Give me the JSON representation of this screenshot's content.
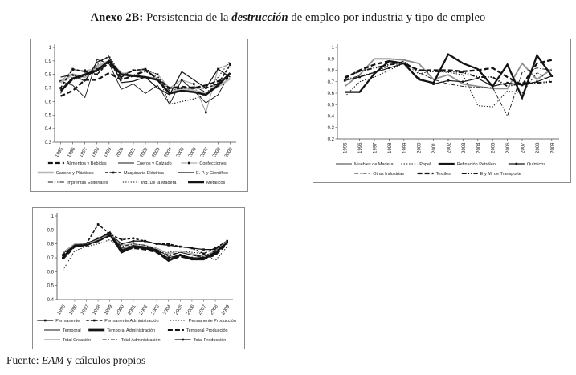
{
  "page": {
    "title": {
      "prefix": "Anexo 2B:",
      "mid": " Persistencia de la ",
      "emph": "destrucción",
      "suffix": " de empleo por industria y tipo de empleo"
    },
    "fuente": {
      "label": "Fuente: ",
      "source": "EAM",
      "rest": " y cálculos propios"
    }
  },
  "chart_data": [
    {
      "type": "line",
      "panel": "top-left",
      "title": "",
      "xlabel": "",
      "ylabel": "",
      "grid": false,
      "legend_position": "bottom",
      "ylim": [
        0.3,
        1
      ],
      "yticks": [
        1,
        0.9,
        0.8,
        0.7,
        0.6,
        0.5,
        0.4,
        0.3
      ],
      "ytick_labels": [
        "1",
        "0.9",
        "0.8",
        "0.7",
        "0.6",
        "0.5",
        "0.4",
        "0.3"
      ],
      "x_label_rotation": -58,
      "categories": [
        "1995",
        "1996",
        "1997",
        "1998",
        "1999",
        "2000",
        "2001",
        "2002",
        "2003",
        "2004",
        "2005",
        "2006",
        "2007",
        "2008",
        "2009"
      ],
      "legend_rows": [
        [
          0,
          1,
          2
        ],
        [
          3,
          4,
          5
        ],
        [
          6,
          7,
          8
        ]
      ],
      "series": [
        {
          "name": "Alimentos y Bebidas",
          "style": {
            "color": "#141414",
            "width": 2.3,
            "dash": "longdash",
            "marker": ""
          },
          "values": [
            0.64,
            0.68,
            0.76,
            0.76,
            0.81,
            0.76,
            0.79,
            0.83,
            0.77,
            0.7,
            0.71,
            0.7,
            0.72,
            0.75,
            0.78
          ]
        },
        {
          "name": "Cueros y Calzado",
          "style": {
            "color": "#141414",
            "width": 0.9,
            "dash": "solid",
            "marker": ""
          },
          "values": [
            0.75,
            0.72,
            0.63,
            0.91,
            0.88,
            0.69,
            0.73,
            0.66,
            0.72,
            0.58,
            0.76,
            0.68,
            0.59,
            0.65,
            0.81
          ]
        },
        {
          "name": "Confecciones",
          "style": {
            "color": "#9b9b9b",
            "width": 1.0,
            "dash": "solid",
            "marker": "square",
            "marker_color": "#141414"
          },
          "values": [
            0.75,
            0.83,
            0.83,
            0.84,
            0.9,
            0.8,
            0.83,
            0.83,
            0.8,
            0.7,
            0.76,
            0.73,
            0.52,
            0.84,
            0.88
          ]
        },
        {
          "name": "Caucho y Plásticos",
          "style": {
            "color": "#b5b5b5",
            "width": 2.6,
            "dash": "solid",
            "marker": ""
          },
          "values": [
            0.74,
            0.8,
            0.78,
            0.86,
            0.9,
            0.81,
            0.79,
            0.78,
            0.77,
            0.66,
            0.7,
            0.68,
            0.66,
            0.71,
            0.77
          ]
        },
        {
          "name": "Maquinaria Eléctrica",
          "style": {
            "color": "#141414",
            "width": 1.6,
            "dash": "dashsq",
            "marker": "square",
            "marker_color": "#141414"
          },
          "values": [
            0.7,
            0.84,
            0.82,
            0.8,
            0.89,
            0.78,
            0.83,
            0.84,
            0.76,
            0.7,
            0.7,
            0.7,
            0.7,
            0.73,
            0.87
          ]
        },
        {
          "name": "E. P. y Científico",
          "style": {
            "color": "#141414",
            "width": 1.2,
            "dash": "solid",
            "marker": ""
          },
          "values": [
            0.78,
            0.8,
            0.75,
            0.89,
            0.93,
            0.74,
            0.75,
            0.78,
            0.7,
            0.65,
            0.82,
            0.76,
            0.7,
            0.84,
            0.78
          ]
        },
        {
          "name": "Imprentas Editoriales",
          "style": {
            "color": "#141414",
            "width": 1.0,
            "dash": "dashdotdot",
            "marker": ""
          },
          "values": [
            0.67,
            0.76,
            0.79,
            0.82,
            0.88,
            0.77,
            0.79,
            0.82,
            0.78,
            0.68,
            0.7,
            0.71,
            0.67,
            0.72,
            0.8
          ]
        },
        {
          "name": "Ind. De la Madera",
          "style": {
            "color": "#141414",
            "width": 1.1,
            "dash": "dot",
            "marker": ""
          },
          "values": [
            0.66,
            0.79,
            0.75,
            0.87,
            0.94,
            0.79,
            0.83,
            0.84,
            0.8,
            0.58,
            0.6,
            0.62,
            0.65,
            0.78,
            0.9
          ]
        },
        {
          "name": "Metálicos",
          "style": {
            "color": "#141414",
            "width": 2.6,
            "dash": "solid",
            "marker": ""
          },
          "values": [
            0.68,
            0.77,
            0.8,
            0.83,
            0.9,
            0.8,
            0.79,
            0.78,
            0.76,
            0.66,
            0.68,
            0.67,
            0.65,
            0.72,
            0.81
          ]
        }
      ]
    },
    {
      "type": "line",
      "panel": "top-right",
      "title": "",
      "xlabel": "",
      "ylabel": "",
      "grid": false,
      "legend_position": "bottom",
      "ylim": [
        0.2,
        1
      ],
      "yticks": [
        1,
        0.9,
        0.8,
        0.7,
        0.6,
        0.5,
        0.4,
        0.3,
        0.2
      ],
      "ytick_labels": [
        "1",
        "0.9",
        "0.8",
        "0.7",
        "0.6",
        "0.5",
        "0.4",
        "0.3",
        "0.2"
      ],
      "x_label_rotation": -90,
      "categories": [
        "1995",
        "1996",
        "1997",
        "1998",
        "1999",
        "2000",
        "2001",
        "2002",
        "2003",
        "2004",
        "2005",
        "2006",
        "2007",
        "2008",
        "2009"
      ],
      "legend_rows": [
        [
          0,
          1,
          2,
          3
        ],
        [
          4,
          5,
          6
        ]
      ],
      "series": [
        {
          "name": "Muebles de Madera",
          "style": {
            "color": "#8f8f8f",
            "width": 1.8,
            "dash": "solid",
            "marker": ""
          },
          "values": [
            0.66,
            0.76,
            0.9,
            0.9,
            0.89,
            0.86,
            0.72,
            0.76,
            0.68,
            0.66,
            0.64,
            0.64,
            0.86,
            0.72,
            0.81
          ]
        },
        {
          "name": "Papel",
          "style": {
            "color": "#141414",
            "width": 1.0,
            "dash": "dot",
            "marker": ""
          },
          "values": [
            0.57,
            0.7,
            0.74,
            0.8,
            0.86,
            0.77,
            0.79,
            0.78,
            0.76,
            0.49,
            0.48,
            0.62,
            0.6,
            0.78,
            0.7
          ]
        },
        {
          "name": "Refinación Petróleo",
          "style": {
            "color": "#141414",
            "width": 2.3,
            "dash": "solid",
            "marker": ""
          },
          "values": [
            0.61,
            0.61,
            0.77,
            0.88,
            0.86,
            0.72,
            0.69,
            0.94,
            0.86,
            0.81,
            0.66,
            0.85,
            0.56,
            0.93,
            0.75
          ]
        },
        {
          "name": "Químicos",
          "style": {
            "color": "#141414",
            "width": 1.2,
            "dash": "solid",
            "marker": "square",
            "marker_color": "#141414"
          },
          "values": [
            0.71,
            0.74,
            0.78,
            0.82,
            0.86,
            0.73,
            0.68,
            0.71,
            0.7,
            0.73,
            0.66,
            0.69,
            0.67,
            0.7,
            0.75
          ]
        },
        {
          "name": "Otras Industrias",
          "style": {
            "color": "#141414",
            "width": 0.9,
            "dash": "dashdot",
            "marker": ""
          },
          "values": [
            0.72,
            0.75,
            0.78,
            0.84,
            0.88,
            0.78,
            0.72,
            0.68,
            0.66,
            0.65,
            0.65,
            0.4,
            0.78,
            0.82,
            0.8
          ]
        },
        {
          "name": "Textiles",
          "style": {
            "color": "#141414",
            "width": 2.3,
            "dash": "longdash",
            "marker": ""
          },
          "values": [
            0.73,
            0.8,
            0.85,
            0.88,
            0.86,
            0.8,
            0.8,
            0.8,
            0.79,
            0.8,
            0.82,
            0.74,
            0.67,
            0.86,
            0.89
          ]
        },
        {
          "name": "E y M. de Transporte",
          "style": {
            "color": "#141414",
            "width": 1.9,
            "dash": "dashdotdot",
            "marker": ""
          },
          "values": [
            0.74,
            0.79,
            0.82,
            0.85,
            0.86,
            0.8,
            0.79,
            0.79,
            0.78,
            0.74,
            0.74,
            0.66,
            0.69,
            0.69,
            0.7
          ]
        }
      ]
    },
    {
      "type": "line",
      "panel": "bottom-left",
      "title": "",
      "xlabel": "",
      "ylabel": "",
      "grid": false,
      "legend_position": "bottom",
      "ylim": [
        0.4,
        1
      ],
      "yticks": [
        1,
        0.9,
        0.8,
        0.7,
        0.6,
        0.5,
        0.4
      ],
      "ytick_labels": [
        "1",
        "0.9",
        "0.8",
        "0.7",
        "0.6",
        "0.5",
        "0.4"
      ],
      "x_label_rotation": -58,
      "categories": [
        "1995",
        "1996",
        "1997",
        "1998",
        "1999",
        "2000",
        "2001",
        "2002",
        "2003",
        "2004",
        "2005",
        "2006",
        "2007",
        "2008",
        "2009"
      ],
      "legend_rows": [
        [
          0,
          1,
          2
        ],
        [
          3,
          4,
          5
        ],
        [
          6,
          7,
          8
        ]
      ],
      "series": [
        {
          "name": "Permanente",
          "style": {
            "color": "#141414",
            "width": 1.3,
            "dash": "solid",
            "marker": "square",
            "marker_color": "#141414"
          },
          "values": [
            0.7,
            0.79,
            0.8,
            0.84,
            0.87,
            0.8,
            0.82,
            0.82,
            0.8,
            0.79,
            0.78,
            0.77,
            0.76,
            0.76,
            0.82
          ]
        },
        {
          "name": "Permanente Administración",
          "style": {
            "color": "#141414",
            "width": 1.6,
            "dash": "dashsq",
            "marker": "square",
            "marker_color": "#141414"
          },
          "values": [
            0.72,
            0.79,
            0.8,
            0.94,
            0.87,
            0.83,
            0.84,
            0.82,
            0.8,
            0.8,
            0.78,
            0.77,
            0.73,
            0.77,
            0.82
          ]
        },
        {
          "name": "Permanente Producción",
          "style": {
            "color": "#141414",
            "width": 1.0,
            "dash": "dot",
            "marker": ""
          },
          "values": [
            0.61,
            0.75,
            0.78,
            0.8,
            0.83,
            0.76,
            0.77,
            0.77,
            0.74,
            0.74,
            0.75,
            0.74,
            0.73,
            0.68,
            0.78
          ]
        },
        {
          "name": "Temporal",
          "style": {
            "color": "#141414",
            "width": 0.9,
            "dash": "solid",
            "marker": ""
          },
          "values": [
            0.73,
            0.79,
            0.8,
            0.82,
            0.87,
            0.77,
            0.79,
            0.78,
            0.76,
            0.71,
            0.74,
            0.72,
            0.7,
            0.74,
            0.82
          ]
        },
        {
          "name": "Temporal Administración",
          "style": {
            "color": "#141414",
            "width": 2.8,
            "dash": "solid",
            "marker": ""
          },
          "values": [
            0.7,
            0.79,
            0.8,
            0.83,
            0.88,
            0.74,
            0.78,
            0.77,
            0.75,
            0.68,
            0.72,
            0.69,
            0.69,
            0.74,
            0.81
          ]
        },
        {
          "name": "Temporal Producción",
          "style": {
            "color": "#141414",
            "width": 2.1,
            "dash": "longdash",
            "marker": ""
          },
          "values": [
            0.69,
            0.78,
            0.79,
            0.82,
            0.86,
            0.75,
            0.77,
            0.76,
            0.74,
            0.68,
            0.71,
            0.69,
            0.69,
            0.72,
            0.8
          ]
        },
        {
          "name": "Total Creación",
          "style": {
            "color": "#9b9b9b",
            "width": 1.2,
            "dash": "solid",
            "marker": ""
          },
          "values": [
            0.74,
            0.8,
            0.8,
            0.83,
            0.87,
            0.79,
            0.8,
            0.79,
            0.77,
            0.73,
            0.75,
            0.73,
            0.71,
            0.75,
            0.82
          ]
        },
        {
          "name": "Total Administración",
          "style": {
            "color": "#141414",
            "width": 1.0,
            "dash": "dashdot",
            "marker": ""
          },
          "values": [
            0.71,
            0.79,
            0.8,
            0.84,
            0.87,
            0.78,
            0.8,
            0.79,
            0.76,
            0.72,
            0.74,
            0.72,
            0.71,
            0.75,
            0.81
          ]
        },
        {
          "name": "Total Producción",
          "style": {
            "color": "#141414",
            "width": 1.2,
            "dash": "solid",
            "marker": "square",
            "marker_color": "#141414"
          },
          "values": [
            0.7,
            0.78,
            0.79,
            0.82,
            0.86,
            0.76,
            0.78,
            0.77,
            0.74,
            0.7,
            0.72,
            0.7,
            0.7,
            0.73,
            0.81
          ]
        }
      ]
    }
  ]
}
